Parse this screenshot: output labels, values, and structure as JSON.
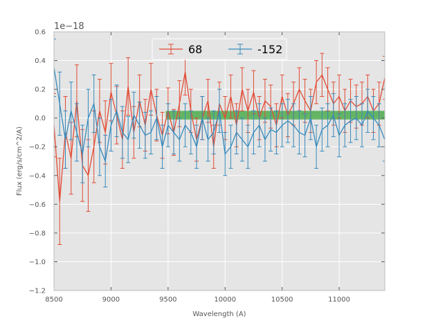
{
  "chart_data": {
    "type": "line",
    "title": "",
    "offset_label": "1e−18",
    "xlabel": "Wavelength (A)",
    "ylabel": "Flux (erg/s/cm^2/A)",
    "xlim": [
      8500,
      11400
    ],
    "ylim": [
      -1.2,
      0.6
    ],
    "xticks": [
      8500,
      9000,
      9500,
      10000,
      10500,
      11000
    ],
    "xtick_labels": [
      "8500",
      "9000",
      "9500",
      "10000",
      "10500",
      "11000"
    ],
    "yticks": [
      0.6,
      0.4,
      0.2,
      0.0,
      -0.2,
      -0.4,
      -0.6,
      -0.8,
      -1.0,
      -1.2
    ],
    "ytick_labels": [
      "0.6",
      "0.4",
      "0.2",
      "0.0",
      "−0.2",
      "−0.4",
      "−0.6",
      "−0.8",
      "−1.0",
      "−1.2"
    ],
    "grid": true,
    "legend_position": "top-center",
    "band": {
      "x_start": 9480,
      "x_end": 11400,
      "y_low": -0.01,
      "y_high": 0.05,
      "color": "#2ca02c"
    },
    "series": [
      {
        "name": "68",
        "color": "#e24a33",
        "x": [
          8500,
          8550,
          8600,
          8650,
          8700,
          8750,
          8800,
          8850,
          8900,
          8950,
          9000,
          9050,
          9100,
          9150,
          9200,
          9250,
          9300,
          9350,
          9400,
          9450,
          9500,
          9550,
          9600,
          9650,
          9700,
          9750,
          9800,
          9850,
          9900,
          9950,
          10000,
          10050,
          10100,
          10150,
          10200,
          10250,
          10300,
          10350,
          10400,
          10450,
          10500,
          10550,
          10600,
          10650,
          10700,
          10750,
          10800,
          10850,
          10900,
          10950,
          11000,
          11050,
          11100,
          11150,
          11200,
          11250,
          11300,
          11350,
          11400
        ],
        "y": [
          -0.05,
          -0.58,
          -0.1,
          -0.28,
          0.12,
          -0.33,
          -0.4,
          -0.2,
          0.05,
          -0.1,
          0.18,
          0.02,
          -0.15,
          0.22,
          -0.1,
          0.12,
          -0.05,
          0.2,
          0.02,
          -0.12,
          0.05,
          -0.1,
          0.1,
          0.32,
          0.05,
          -0.15,
          0.0,
          0.12,
          -0.2,
          0.1,
          0.0,
          0.15,
          -0.05,
          0.2,
          0.05,
          0.18,
          0.0,
          0.12,
          0.08,
          -0.05,
          0.15,
          0.02,
          0.1,
          0.2,
          0.12,
          0.05,
          0.25,
          0.3,
          0.2,
          0.1,
          0.15,
          0.05,
          0.12,
          0.08,
          0.1,
          0.15,
          0.05,
          0.1,
          0.28
        ],
        "yerr": [
          0.22,
          0.3,
          0.25,
          0.25,
          0.25,
          0.25,
          0.25,
          0.25,
          0.22,
          0.22,
          0.2,
          0.2,
          0.2,
          0.2,
          0.18,
          0.18,
          0.18,
          0.18,
          0.18,
          0.16,
          0.16,
          0.16,
          0.16,
          0.16,
          0.15,
          0.15,
          0.15,
          0.15,
          0.15,
          0.15,
          0.15,
          0.15,
          0.15,
          0.15,
          0.15,
          0.15,
          0.15,
          0.15,
          0.15,
          0.15,
          0.15,
          0.15,
          0.15,
          0.15,
          0.15,
          0.15,
          0.15,
          0.15,
          0.15,
          0.15,
          0.15,
          0.15,
          0.15,
          0.15,
          0.15,
          0.15,
          0.15,
          0.15,
          0.15
        ]
      },
      {
        "name": "-152",
        "color": "#348abd",
        "x": [
          8500,
          8550,
          8600,
          8650,
          8700,
          8750,
          8800,
          8850,
          8900,
          8950,
          9000,
          9050,
          9100,
          9150,
          9200,
          9250,
          9300,
          9350,
          9400,
          9450,
          9500,
          9550,
          9600,
          9650,
          9700,
          9750,
          9800,
          9850,
          9900,
          9950,
          10000,
          10050,
          10100,
          10150,
          10200,
          10250,
          10300,
          10350,
          10400,
          10450,
          10500,
          10550,
          10600,
          10650,
          10700,
          10750,
          10800,
          10850,
          10900,
          10950,
          11000,
          11050,
          11100,
          11150,
          11200,
          11250,
          11300,
          11350,
          11400
        ],
        "y": [
          0.35,
          0.1,
          -0.15,
          0.05,
          -0.1,
          -0.25,
          0.0,
          0.1,
          -0.2,
          -0.3,
          -0.05,
          0.05,
          -0.1,
          -0.15,
          0.02,
          -0.05,
          -0.12,
          -0.1,
          0.0,
          -0.2,
          -0.05,
          -0.1,
          -0.15,
          -0.05,
          -0.1,
          -0.2,
          0.0,
          -0.15,
          -0.1,
          0.05,
          -0.25,
          -0.2,
          -0.1,
          -0.15,
          -0.2,
          -0.1,
          -0.05,
          -0.15,
          -0.08,
          -0.1,
          -0.05,
          -0.02,
          -0.05,
          -0.1,
          -0.12,
          0.0,
          -0.2,
          -0.08,
          -0.05,
          0.02,
          -0.12,
          -0.05,
          -0.02,
          0.0,
          -0.05,
          0.05,
          0.0,
          -0.05,
          -0.15
        ],
        "yerr": [
          0.2,
          0.22,
          0.2,
          0.2,
          0.2,
          0.2,
          0.2,
          0.2,
          0.2,
          0.18,
          0.18,
          0.18,
          0.18,
          0.16,
          0.16,
          0.16,
          0.16,
          0.15,
          0.15,
          0.15,
          0.15,
          0.15,
          0.15,
          0.15,
          0.15,
          0.15,
          0.15,
          0.15,
          0.15,
          0.15,
          0.15,
          0.15,
          0.15,
          0.15,
          0.15,
          0.15,
          0.15,
          0.15,
          0.15,
          0.15,
          0.15,
          0.15,
          0.15,
          0.15,
          0.15,
          0.15,
          0.15,
          0.15,
          0.15,
          0.15,
          0.15,
          0.15,
          0.15,
          0.15,
          0.15,
          0.15,
          0.15,
          0.15,
          0.15
        ]
      }
    ]
  }
}
